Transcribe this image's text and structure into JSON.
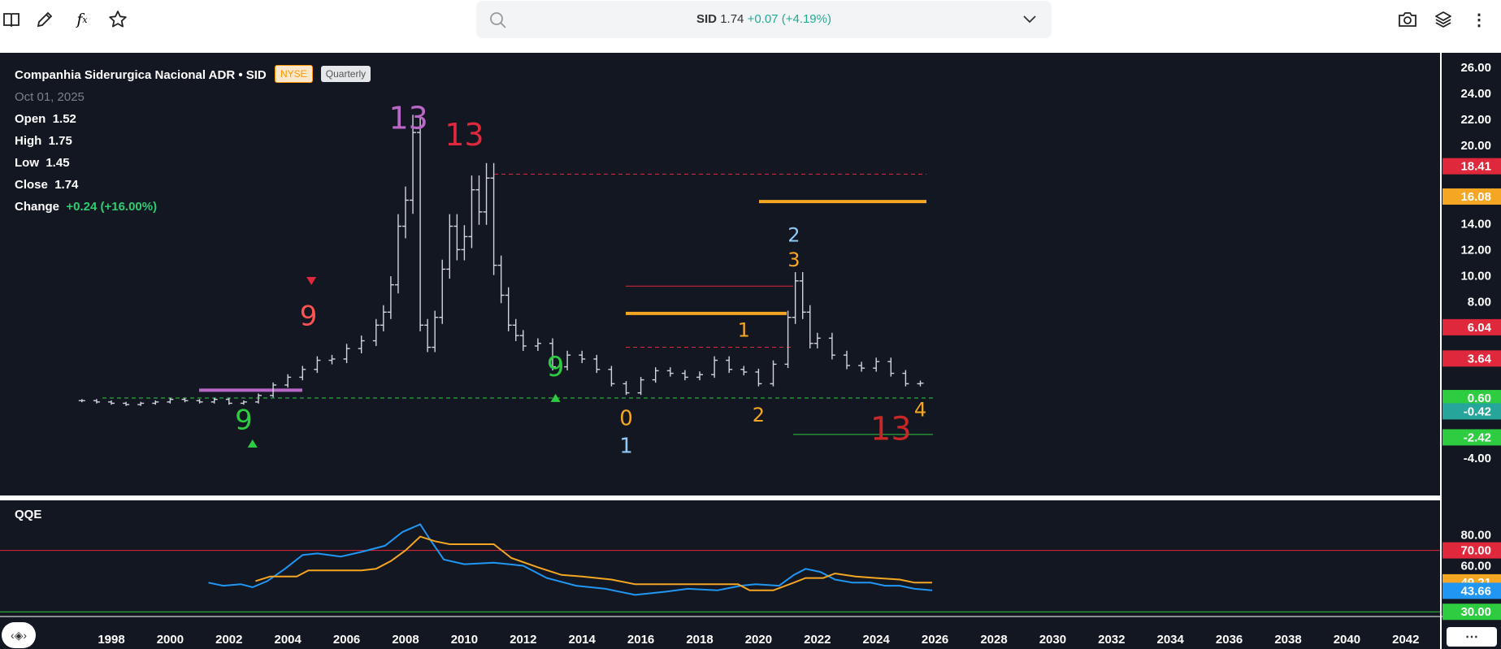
{
  "toolbar": {
    "icons": [
      "book-icon",
      "pencil-icon",
      "function-icon",
      "star-icon"
    ],
    "right_icons": [
      "camera-icon",
      "layers-icon",
      "more-vertical-icon"
    ]
  },
  "search": {
    "symbol": "SID",
    "price": "1.74",
    "change": "+0.07",
    "change_pct": "(+4.19%)"
  },
  "legend": {
    "title": "Companhia Siderurgica Nacional ADR • SID",
    "exchange": "NYSE",
    "interval": "Quarterly",
    "date": "Oct 01, 2025",
    "open_label": "Open",
    "open": "1.52",
    "high_label": "High",
    "high": "1.75",
    "low_label": "Low",
    "low": "1.45",
    "close_label": "Close",
    "close": "1.74",
    "change_label": "Change",
    "change": "+0.24 (+16.00%)"
  },
  "qqe": {
    "label": "QQE"
  },
  "buttons": {
    "more": "⋯",
    "nav": "‹◈›"
  },
  "colors": {
    "background": "#131722",
    "red": "#e0283c",
    "orange": "#f5a623",
    "green": "#2ecc40",
    "blue": "#2196f3",
    "purple": "#ba68c8",
    "light_blue": "#90caf9"
  },
  "chart_data": [
    {
      "type": "candlestick",
      "title": "Companhia Siderurgica Nacional ADR • SID",
      "y_ticks": [
        26.0,
        24.0,
        22.0,
        20.0,
        14.0,
        12.0,
        10.0,
        8.0,
        -4.0
      ],
      "ylim": [
        -5.2,
        26.0
      ],
      "price_labels": [
        {
          "value": "18.41",
          "color": "#e0283c"
        },
        {
          "value": "16.08",
          "color": "#f5a623"
        },
        {
          "value": "6.04",
          "color": "#e0283c"
        },
        {
          "value": "3.64",
          "color": "#e0283c"
        },
        {
          "value": "0.60",
          "color": "#2ecc40"
        },
        {
          "value": "-0.42",
          "color": "#26a69a"
        },
        {
          "value": "-2.42",
          "color": "#2ecc40"
        }
      ],
      "series": {
        "x": [
          1997,
          1997.5,
          1998,
          1998.5,
          1999,
          1999.5,
          2000,
          2000.5,
          2001,
          2001.5,
          2002,
          2002.5,
          2003,
          2003.5,
          2004,
          2004.5,
          2005,
          2005.5,
          2006,
          2006.5,
          2007,
          2007.25,
          2007.5,
          2007.75,
          2008,
          2008.25,
          2008.5,
          2008.75,
          2009,
          2009.25,
          2009.5,
          2009.75,
          2010,
          2010.25,
          2010.5,
          2010.75,
          2011,
          2011.25,
          2011.5,
          2011.75,
          2012,
          2012.5,
          2013,
          2013.5,
          2014,
          2014.5,
          2015,
          2015.5,
          2016,
          2016.5,
          2017,
          2017.5,
          2018,
          2018.5,
          2019,
          2019.5,
          2020,
          2020.5,
          2021,
          2021.25,
          2021.5,
          2021.75,
          2022,
          2022.5,
          2023,
          2023.5,
          2024,
          2024.5,
          2025,
          2025.5
        ],
        "close": [
          0.4,
          0.3,
          0.2,
          0.1,
          0.2,
          0.3,
          0.5,
          0.4,
          0.3,
          0.5,
          0.2,
          0.3,
          0.8,
          1.6,
          2.2,
          2.8,
          3.5,
          3.6,
          4.4,
          5.0,
          6.2,
          7.2,
          9.3,
          13.8,
          15.8,
          21.0,
          6.2,
          4.5,
          6.8,
          10.5,
          13.8,
          12.0,
          13.0,
          16.6,
          14.9,
          17.5,
          10.8,
          8.5,
          6.2,
          5.4,
          4.6,
          4.8,
          3.0,
          3.9,
          3.6,
          2.8,
          1.7,
          1.0,
          2.0,
          2.7,
          2.5,
          2.2,
          2.4,
          3.5,
          2.8,
          2.6,
          1.7,
          3.2,
          6.8,
          9.6,
          7.2,
          4.8,
          5.2,
          3.9,
          3.1,
          2.9,
          3.4,
          2.5,
          1.7,
          1.74
        ]
      },
      "annotations": [
        {
          "text": "9",
          "x": 2002.5,
          "y": -1.8,
          "color": "#2ecc40",
          "size": 34
        },
        {
          "text": "9",
          "x": 2004.7,
          "y": 6.2,
          "color": "#ff5252",
          "size": 34
        },
        {
          "text": "13",
          "x": 2008.1,
          "y": 21.3,
          "color": "#ba68c8",
          "size": 38
        },
        {
          "text": "13",
          "x": 2010.0,
          "y": 20.0,
          "color": "#e0283c",
          "size": 38
        },
        {
          "text": "9",
          "x": 2013.1,
          "y": 2.3,
          "color": "#2ecc40",
          "size": 34
        },
        {
          "text": "0",
          "x": 2015.5,
          "y": -1.5,
          "color": "#f5a623",
          "size": 26
        },
        {
          "text": "1",
          "x": 2015.5,
          "y": -3.6,
          "color": "#90caf9",
          "size": 26
        },
        {
          "text": "2",
          "x": 2021.2,
          "y": 12.6,
          "color": "#90caf9",
          "size": 24
        },
        {
          "text": "3",
          "x": 2021.2,
          "y": 10.7,
          "color": "#f5a623",
          "size": 24
        },
        {
          "text": "1",
          "x": 2019.5,
          "y": 5.3,
          "color": "#f5a623",
          "size": 24
        },
        {
          "text": "2",
          "x": 2020.0,
          "y": -1.2,
          "color": "#f5a623",
          "size": 24
        },
        {
          "text": "4",
          "x": 2025.5,
          "y": -0.8,
          "color": "#f5a623",
          "size": 24
        },
        {
          "text": "13",
          "x": 2024.5,
          "y": -2.6,
          "color": "#c62828",
          "size": 40
        }
      ]
    },
    {
      "type": "line",
      "title": "QQE",
      "y_ticks": [
        80.0,
        70.0,
        60.0,
        30.0
      ],
      "ylim": [
        28,
        92
      ],
      "price_labels": [
        {
          "value": "70.00",
          "color": "#e0283c"
        },
        {
          "value": "49.21",
          "color": "#f5a623"
        },
        {
          "value": "43.66",
          "color": "#2196f3"
        },
        {
          "value": "30.00",
          "color": "#2ecc40"
        }
      ],
      "levels": [
        70,
        30
      ],
      "series": [
        {
          "color": "#2196f3",
          "x": [
            2001.3,
            2001.8,
            2002.4,
            2002.8,
            2003.3,
            2003.9,
            2004.5,
            2005.0,
            2005.8,
            2006.5,
            2007.3,
            2007.9,
            2008.5,
            2008.8,
            2009.3,
            2010.0,
            2011.0,
            2012.0,
            2012.8,
            2013.8,
            2014.8,
            2015.8,
            2016.8,
            2017.6,
            2018.6,
            2019.4,
            2019.9,
            2020.7,
            2021.2,
            2021.6,
            2022.1,
            2022.6,
            2023.2,
            2023.8,
            2024.3,
            2024.8,
            2025.3,
            2025.9
          ],
          "values": [
            49,
            47,
            48,
            46,
            50,
            58,
            67,
            68,
            66,
            69,
            73,
            82,
            87,
            78,
            64,
            61,
            62,
            60,
            52,
            47,
            45,
            41,
            43,
            45,
            44,
            47,
            48,
            47,
            54,
            58,
            56,
            51,
            49,
            49,
            47,
            47,
            45,
            44
          ]
        },
        {
          "color": "#f5a623",
          "x": [
            2002.9,
            2003.4,
            2004.3,
            2004.7,
            2005.5,
            2006.5,
            2007.0,
            2007.5,
            2008.0,
            2008.5,
            2009.0,
            2009.5,
            2011.0,
            2011.6,
            2012.5,
            2013.3,
            2014.0,
            2015.0,
            2015.8,
            2016.8,
            2017.6,
            2018.6,
            2019.3,
            2019.7,
            2020.5,
            2021.2,
            2021.6,
            2022.2,
            2022.6,
            2023.3,
            2024.0,
            2024.8,
            2025.3,
            2025.9
          ],
          "values": [
            50,
            53,
            53,
            57,
            57,
            57,
            58,
            63,
            70,
            79,
            76,
            74,
            74,
            65,
            59,
            54,
            53,
            51,
            48,
            48,
            48,
            48,
            48,
            44,
            44,
            49,
            52,
            52,
            55,
            53,
            52,
            51,
            49,
            49
          ]
        }
      ]
    },
    {
      "type": "time_axis",
      "x_ticks": [
        "1998",
        "2000",
        "2002",
        "2004",
        "2006",
        "2008",
        "2010",
        "2012",
        "2014",
        "2016",
        "2018",
        "2020",
        "2022",
        "2024",
        "2026",
        "2028",
        "2030",
        "2032",
        "2034",
        "2036",
        "2038",
        "2040",
        "2042"
      ]
    }
  ]
}
